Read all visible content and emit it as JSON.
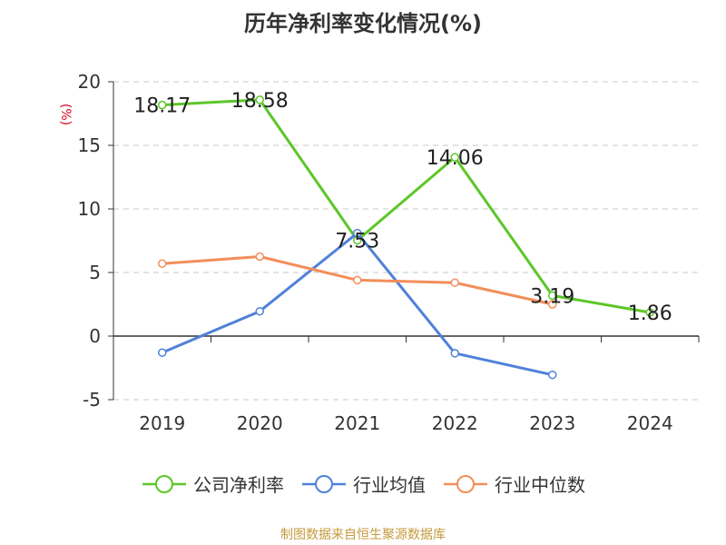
{
  "chart_data": {
    "type": "line",
    "title": "历年净利率变化情况(%)",
    "ylabel": "(%)",
    "xlabel": "",
    "categories": [
      "2019",
      "2020",
      "2021",
      "2022",
      "2023",
      "2024"
    ],
    "ylim": [
      -5,
      20
    ],
    "yticks": [
      -5,
      0,
      5,
      10,
      15,
      20
    ],
    "grid": true,
    "legend_position": "bottom",
    "series": [
      {
        "name": "公司净利率",
        "color": "#5cc728",
        "values": [
          18.17,
          18.58,
          7.53,
          14.06,
          3.19,
          1.86
        ],
        "labels": [
          "18.17",
          "18.58",
          "7.53",
          "14.06",
          "3.19",
          "1.86"
        ]
      },
      {
        "name": "行业均值",
        "color": "#4f81d9",
        "values": [
          -1.3,
          1.95,
          8.1,
          -1.35,
          -3.05,
          null
        ]
      },
      {
        "name": "行业中位数",
        "color": "#f28e5b",
        "values": [
          5.7,
          6.25,
          4.4,
          4.2,
          2.5,
          null
        ]
      }
    ]
  },
  "source": "制图数据来自恒生聚源数据库"
}
